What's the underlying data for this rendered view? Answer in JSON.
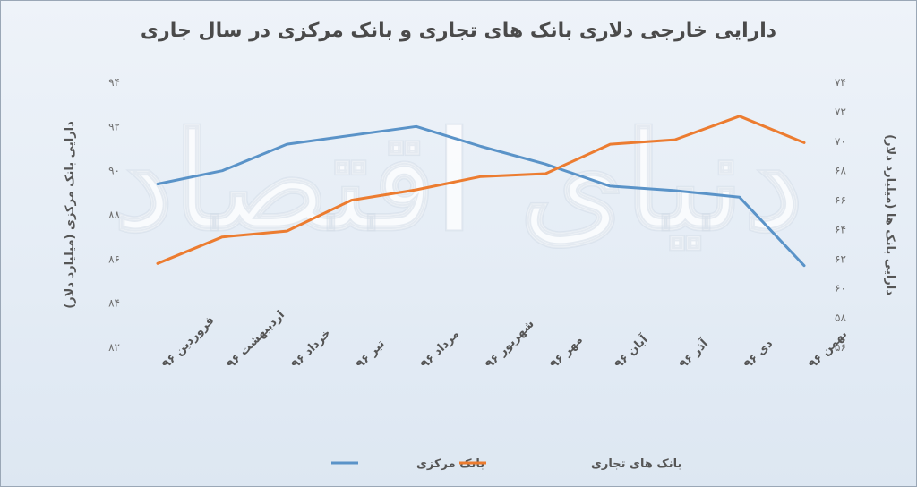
{
  "chart_data": {
    "type": "line",
    "title": "دارایی خارجی دلاری بانک های تجاری و بانک مرکزی در سال جاری",
    "categories": [
      "فروردین ۹۶",
      "اردیبهشت ۹۶",
      "خرداد ۹۶",
      "تیر ۹۶",
      "مرداد ۹۶",
      "شهریور ۹۶",
      "مهر ۹۶",
      "آبان ۹۶",
      "آذر ۹۶",
      "دی ۹۶",
      "بهمن ۹۶"
    ],
    "y_left": {
      "label": "دارایی بانک مرکزی (میلیارد دلار)",
      "ylim": [
        82,
        94
      ],
      "ticks": [
        82,
        84,
        86,
        88,
        90,
        92,
        94
      ],
      "tick_labels": [
        "۸۲",
        "۸۴",
        "۸۶",
        "۸۸",
        "۹۰",
        "۹۲",
        "۹۴"
      ]
    },
    "y_right": {
      "label": "دارایی بانک ها (میلیارد دلار)",
      "ylim": [
        56,
        74
      ],
      "ticks": [
        56,
        58,
        60,
        62,
        64,
        66,
        68,
        70,
        72,
        74
      ],
      "tick_labels": [
        "۵۶",
        "۵۸",
        "۶۰",
        "۶۲",
        "۶۴",
        "۶۶",
        "۶۸",
        "۷۰",
        "۷۲",
        "۷۴"
      ]
    },
    "series": [
      {
        "name": "بانک مرکزی",
        "axis": "left",
        "color": "#5a93c8",
        "values": [
          89.4,
          90.0,
          91.2,
          91.6,
          92.0,
          91.1,
          90.3,
          89.3,
          89.1,
          88.8,
          85.7
        ]
      },
      {
        "name": "بانک های تجاری",
        "axis": "right",
        "color": "#ec7c30",
        "values": [
          61.7,
          63.5,
          63.9,
          66.0,
          66.7,
          67.6,
          67.8,
          69.8,
          70.1,
          71.7,
          69.9
        ]
      }
    ],
    "grid": false,
    "legend": "bottom"
  },
  "watermark": "دنیای اقتصاد"
}
